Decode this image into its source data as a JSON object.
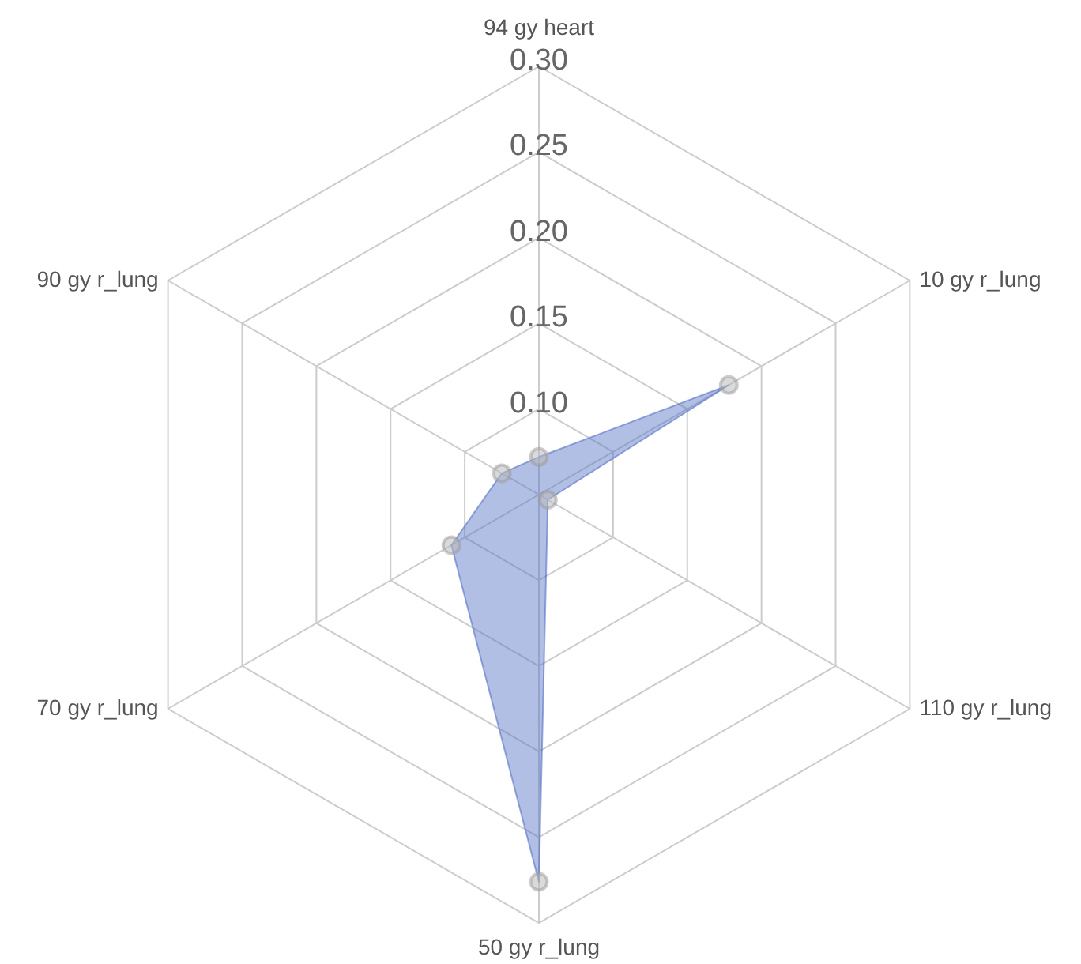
{
  "chart_data": {
    "type": "radar",
    "categories": [
      "94 gy heart",
      "10 gy r_lung",
      "110 gy r_lung",
      "50 gy r_lung",
      "70 gy r_lung",
      "90 gy r_lung"
    ],
    "series": [
      {
        "color": "#5470c6",
        "values": [
          0.072,
          0.178,
          0.056,
          0.276,
          0.109,
          0.075
        ]
      }
    ],
    "ylim": [
      0.05,
      0.3
    ],
    "yticks": [
      {
        "value": 0.1,
        "label": "0.10"
      },
      {
        "value": 0.15,
        "label": "0.15"
      },
      {
        "value": 0.2,
        "label": "0.20"
      },
      {
        "value": 0.25,
        "label": "0.25"
      },
      {
        "value": 0.3,
        "label": "0.30"
      }
    ],
    "grid": true,
    "marker": "circle"
  }
}
